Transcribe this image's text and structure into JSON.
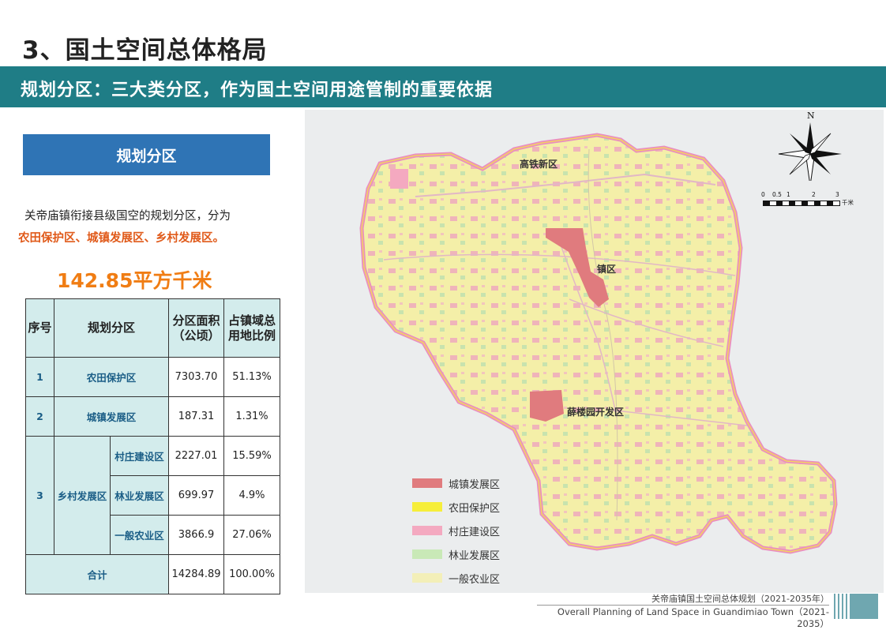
{
  "page": {
    "title": "3、国土空间总体格局",
    "banner": "规划分区：三大类分区，作为国土空间用途管制的重要依据",
    "section_label": "规划分区",
    "desc_line1": "关帝庙镇衔接县级国空的规划分区，分为",
    "desc_line2": "农田保护区、城镇发展区、乡村发展区。",
    "area_total": "142.85平方千米"
  },
  "table": {
    "headers": {
      "index": "序号",
      "zone": "规划分区",
      "area": "分区面积（公顷）",
      "ratio": "占镇域总用地比例"
    },
    "rows": [
      {
        "index": "1",
        "zone": "农田保护区",
        "area": "7303.70",
        "ratio": "51.13%"
      },
      {
        "index": "2",
        "zone": "城镇发展区",
        "area": "187.31",
        "ratio": "1.31%"
      },
      {
        "index": "3",
        "zone": "乡村发展区",
        "sub": [
          {
            "name": "村庄建设区",
            "area": "2227.01",
            "ratio": "15.59%"
          },
          {
            "name": "林业发展区",
            "area": "699.97",
            "ratio": "4.9%"
          },
          {
            "name": "一般农业区",
            "area": "3866.9",
            "ratio": "27.06%"
          }
        ]
      }
    ],
    "total": {
      "label": "合计",
      "area": "14284.89",
      "ratio": "100.00%"
    }
  },
  "map": {
    "labels": {
      "gaotie": "高铁新区",
      "zhenqu": "镇区",
      "xuelouyuan": "薛楼园开发区"
    },
    "north": "N",
    "scale_ticks": [
      "0",
      "0.5",
      "1",
      "2",
      "3"
    ],
    "scale_unit": "千米",
    "legend": [
      {
        "label": "城镇发展区",
        "color": "#e07b7e"
      },
      {
        "label": "农田保护区",
        "color": "#f6ee3a"
      },
      {
        "label": "村庄建设区",
        "color": "#f4a9c0"
      },
      {
        "label": "林业发展区",
        "color": "#c9e9b7"
      },
      {
        "label": "一般农业区",
        "color": "#f3efb8"
      }
    ]
  },
  "footer": {
    "cn": "关帝庙镇国土空间总体规划（2021-2035年）",
    "en": "Overall Planning of Land Space in Guandimiao Town（2021-2035）"
  }
}
